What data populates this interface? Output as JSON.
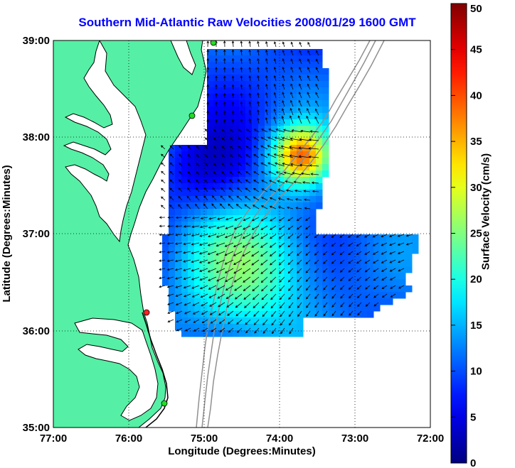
{
  "title": "Southern Mid-Atlantic Raw Velocities 2008/01/29 1600 GMT",
  "x_axis": {
    "label": "Longitude (Degrees:Minutes)",
    "ticks": [
      "77:00",
      "76:00",
      "75:00",
      "74:00",
      "73:00",
      "72:00"
    ]
  },
  "y_axis": {
    "label": "Latitude (Degrees:Minutes)",
    "ticks": [
      "39:00",
      "38:00",
      "37:00",
      "36:00",
      "35:00"
    ]
  },
  "colorbar": {
    "label": "Surface Velocity (cm/s)",
    "min": 0,
    "max": 50,
    "ticks": [
      "50",
      "45",
      "40",
      "35",
      "30",
      "25",
      "20",
      "15",
      "10",
      "5",
      "0"
    ],
    "colormap": "jet"
  },
  "colors": {
    "land": "#55f0a5",
    "water": "#ffffff",
    "coastline": "#000000",
    "bathymetry": "#909090",
    "title": "#0000ff",
    "arrows": "#000000"
  },
  "stations": [
    {
      "color": "#22dd22"
    },
    {
      "color": "#22dd22"
    },
    {
      "color": "#ff2222"
    },
    {
      "color": "#22dd22"
    }
  ],
  "grid": "dotted"
}
